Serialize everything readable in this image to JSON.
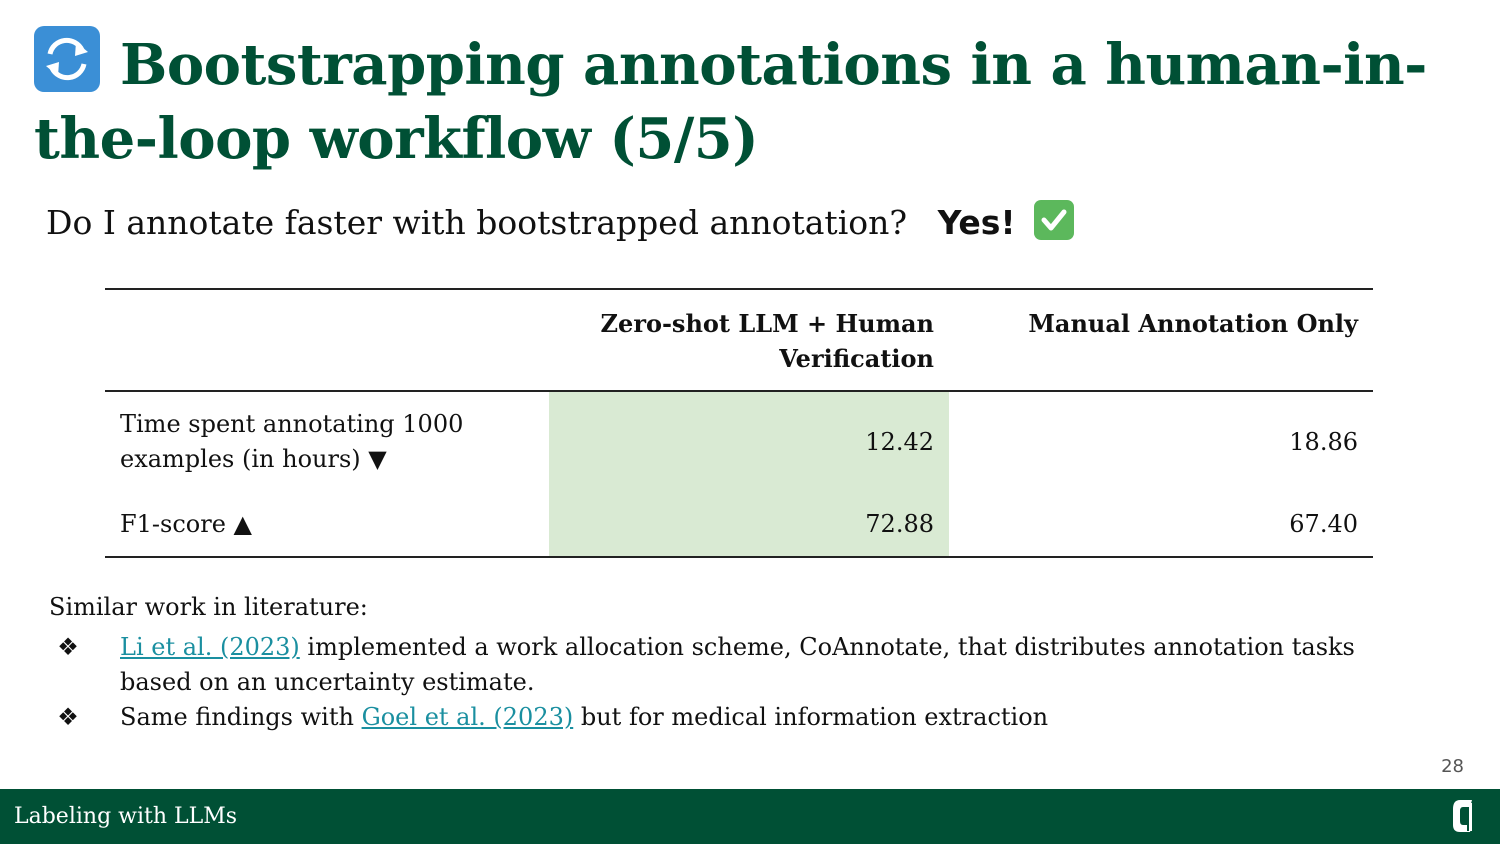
{
  "title": {
    "icon": "arrows-counterclockwise-icon",
    "text": "Bootstrapping annotations in a human-in-the-loop workflow (5/5)"
  },
  "question": {
    "text": "Do I annotate faster with bootstrapped annotation?",
    "answer": "Yes!",
    "answer_icon": "check-mark-button-icon"
  },
  "table": {
    "headers": [
      "",
      "Zero-shot LLM + Human Verification",
      "Manual Annotation Only"
    ],
    "rows": [
      {
        "label": "Time spent annotating 1000 examples (in hours) ▼",
        "llm": "12.42",
        "manual": "18.86"
      },
      {
        "label": "F1-score ▲",
        "llm": "72.88",
        "manual": "67.40"
      }
    ],
    "highlight_color": "#d9ead3"
  },
  "literature": {
    "heading": "Similar work in literature:",
    "bullet_symbol": "❖",
    "items": [
      {
        "link": "Li et al. (2023)",
        "text": " implemented a work allocation scheme, CoAnnotate, that distributes annotation tasks based on an uncertainty estimate."
      },
      {
        "before": "Same findings with ",
        "link": "Goel et al. (2023)",
        "after": " but for medical information extraction"
      }
    ]
  },
  "page_number": "28",
  "footer": {
    "text": "Labeling with LLMs",
    "logo": "charlotte-logo-icon",
    "brand_color": "#005035"
  }
}
